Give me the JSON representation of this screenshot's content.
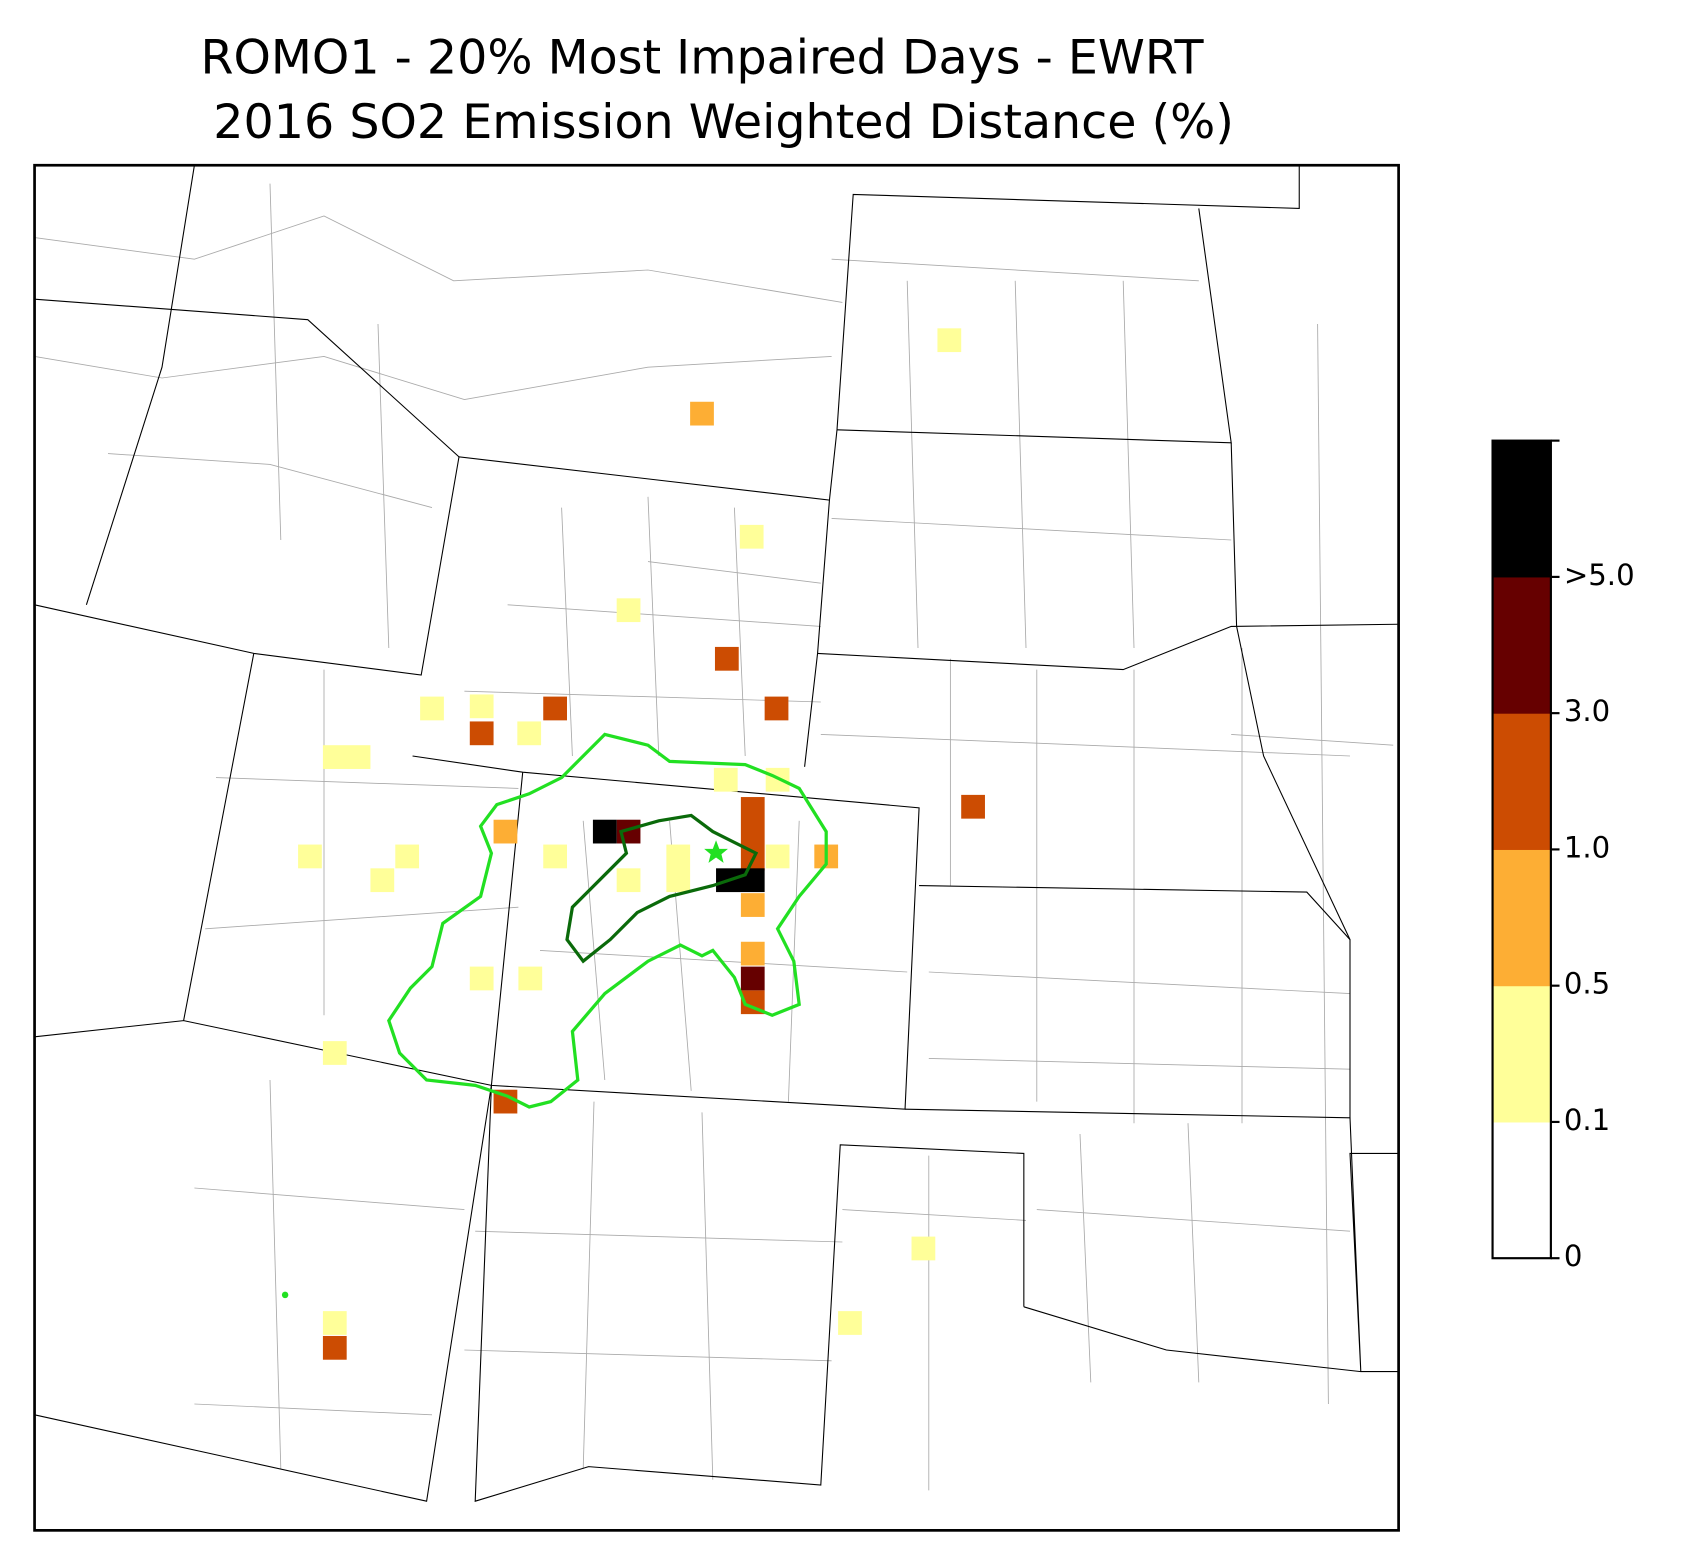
{
  "title": "ROMO1 - 20% Most Impaired Days - EWRT",
  "subtitle": "2016 SO2 Emission Weighted Distance (%)",
  "colorbar": {
    "ticks": [
      "0",
      "0.1",
      "0.5",
      "1.0",
      "3.0",
      ">5.0"
    ],
    "colors": [
      "#ffffff",
      "#ffff99",
      "#fdae34",
      "#cc4c02",
      "#660000",
      "#000000"
    ]
  }
}
